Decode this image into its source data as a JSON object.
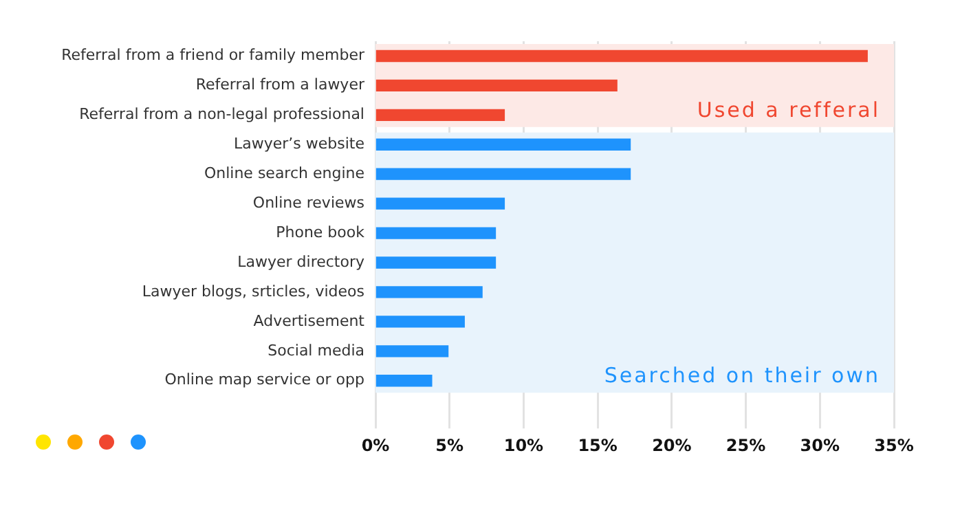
{
  "chart_data": {
    "type": "bar",
    "orientation": "horizontal",
    "categories": [
      "Referral from a friend or family member",
      "Referral from a lawyer",
      "Referral from a non-legal professional",
      "Lawyer’s website",
      "Online search engine",
      "Online reviews",
      "Phone book",
      "Lawyer directory",
      "Lawyer blogs, srticles, videos",
      "Advertisement",
      "Social media",
      "Online map service or opp"
    ],
    "values": [
      33.2,
      16.3,
      8.7,
      17.2,
      17.2,
      8.7,
      8.1,
      8.1,
      7.2,
      6.0,
      4.9,
      3.8
    ],
    "colors": [
      "#f04730",
      "#f04730",
      "#f04730",
      "#1e93fd",
      "#1e93fd",
      "#1e93fd",
      "#1e93fd",
      "#1e93fd",
      "#1e93fd",
      "#1e93fd",
      "#1e93fd",
      "#1e93fd"
    ],
    "xlim": [
      0,
      35
    ],
    "xticks": [
      {
        "value": 0,
        "label": "0%"
      },
      {
        "value": 5,
        "label": "5%"
      },
      {
        "value": 10,
        "label": "10%"
      },
      {
        "value": 15,
        "label": "15%"
      },
      {
        "value": 20,
        "label": "20%"
      },
      {
        "value": 25,
        "label": "25%"
      },
      {
        "value": 30,
        "label": "30%"
      },
      {
        "value": 35,
        "label": "35%"
      }
    ],
    "grid": "x",
    "bands": [
      {
        "axis": "y",
        "from": "Referral from a friend or family member",
        "to": "Referral from a non-legal professional",
        "label": "Used a refferal",
        "color": "#fde9e6"
      },
      {
        "axis": "y",
        "from": "Lawyer’s website",
        "to": "Online map service or opp",
        "label": "Searched on their own",
        "color": "#e8f3fc"
      }
    ]
  }
}
